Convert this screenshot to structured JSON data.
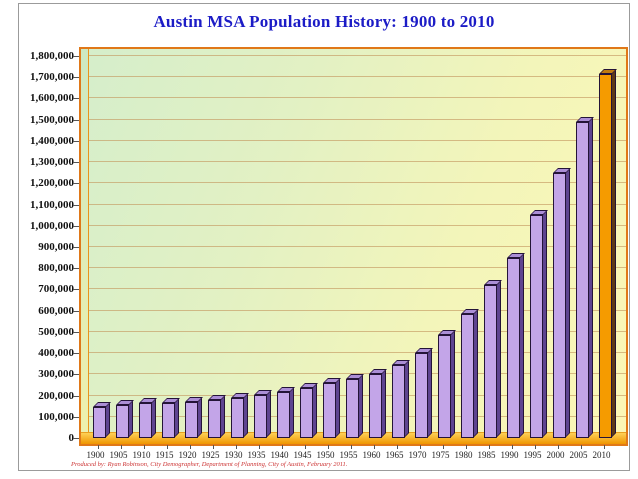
{
  "title": "Austin MSA Population History: 1900 to 2010",
  "credit": "Produced by:  Ryan Robinson, City Demographer, Department of Planning, City of Austin, February 2011.",
  "colors": {
    "title_blue": "#1c1cc6",
    "plot_border_orange": "#e07818",
    "bar_purple_face": "#c3a5e8",
    "bar_purple_side": "#5e4490",
    "bar_purple_top": "#ab8ed6",
    "bar_orange_face": "#f59b00",
    "bar_orange_side": "#5f3a16",
    "bar_orange_top": "#c07b10",
    "floor_orange": "#ef9600",
    "gridline_tan": "#c49a62",
    "credit_red": "#cc3333",
    "background_green": "#d5eecb",
    "background_yellow": "#fcf7b6"
  },
  "chart_data": {
    "type": "bar",
    "title": "Austin MSA Population History: 1900 to 2010",
    "xlabel": "",
    "ylabel": "",
    "ylim": [
      0,
      1800000
    ],
    "ytick_step": 100000,
    "grid": true,
    "legend": "none",
    "highlighted_category": "2010",
    "categories": [
      "1900",
      "1905",
      "1910",
      "1915",
      "1920",
      "1925",
      "1930",
      "1935",
      "1940",
      "1945",
      "1950",
      "1955",
      "1960",
      "1965",
      "1970",
      "1975",
      "1980",
      "1985",
      "1990",
      "1995",
      "2000",
      "2005",
      "2010"
    ],
    "values": [
      148000,
      156000,
      163000,
      167000,
      170000,
      180000,
      190000,
      202000,
      215000,
      235000,
      257000,
      280000,
      301000,
      345000,
      399000,
      485000,
      585000,
      720000,
      846000,
      1050000,
      1250000,
      1490000,
      1716000
    ],
    "y_tick_labels": [
      "0",
      "100,000",
      "200,000",
      "300,000",
      "400,000",
      "500,000",
      "600,000",
      "700,000",
      "800,000",
      "900,000",
      "1,000,000",
      "1,100,000",
      "1,200,000",
      "1,300,000",
      "1,400,000",
      "1,500,000",
      "1,600,000",
      "1,700,000",
      "1,800,000"
    ]
  }
}
